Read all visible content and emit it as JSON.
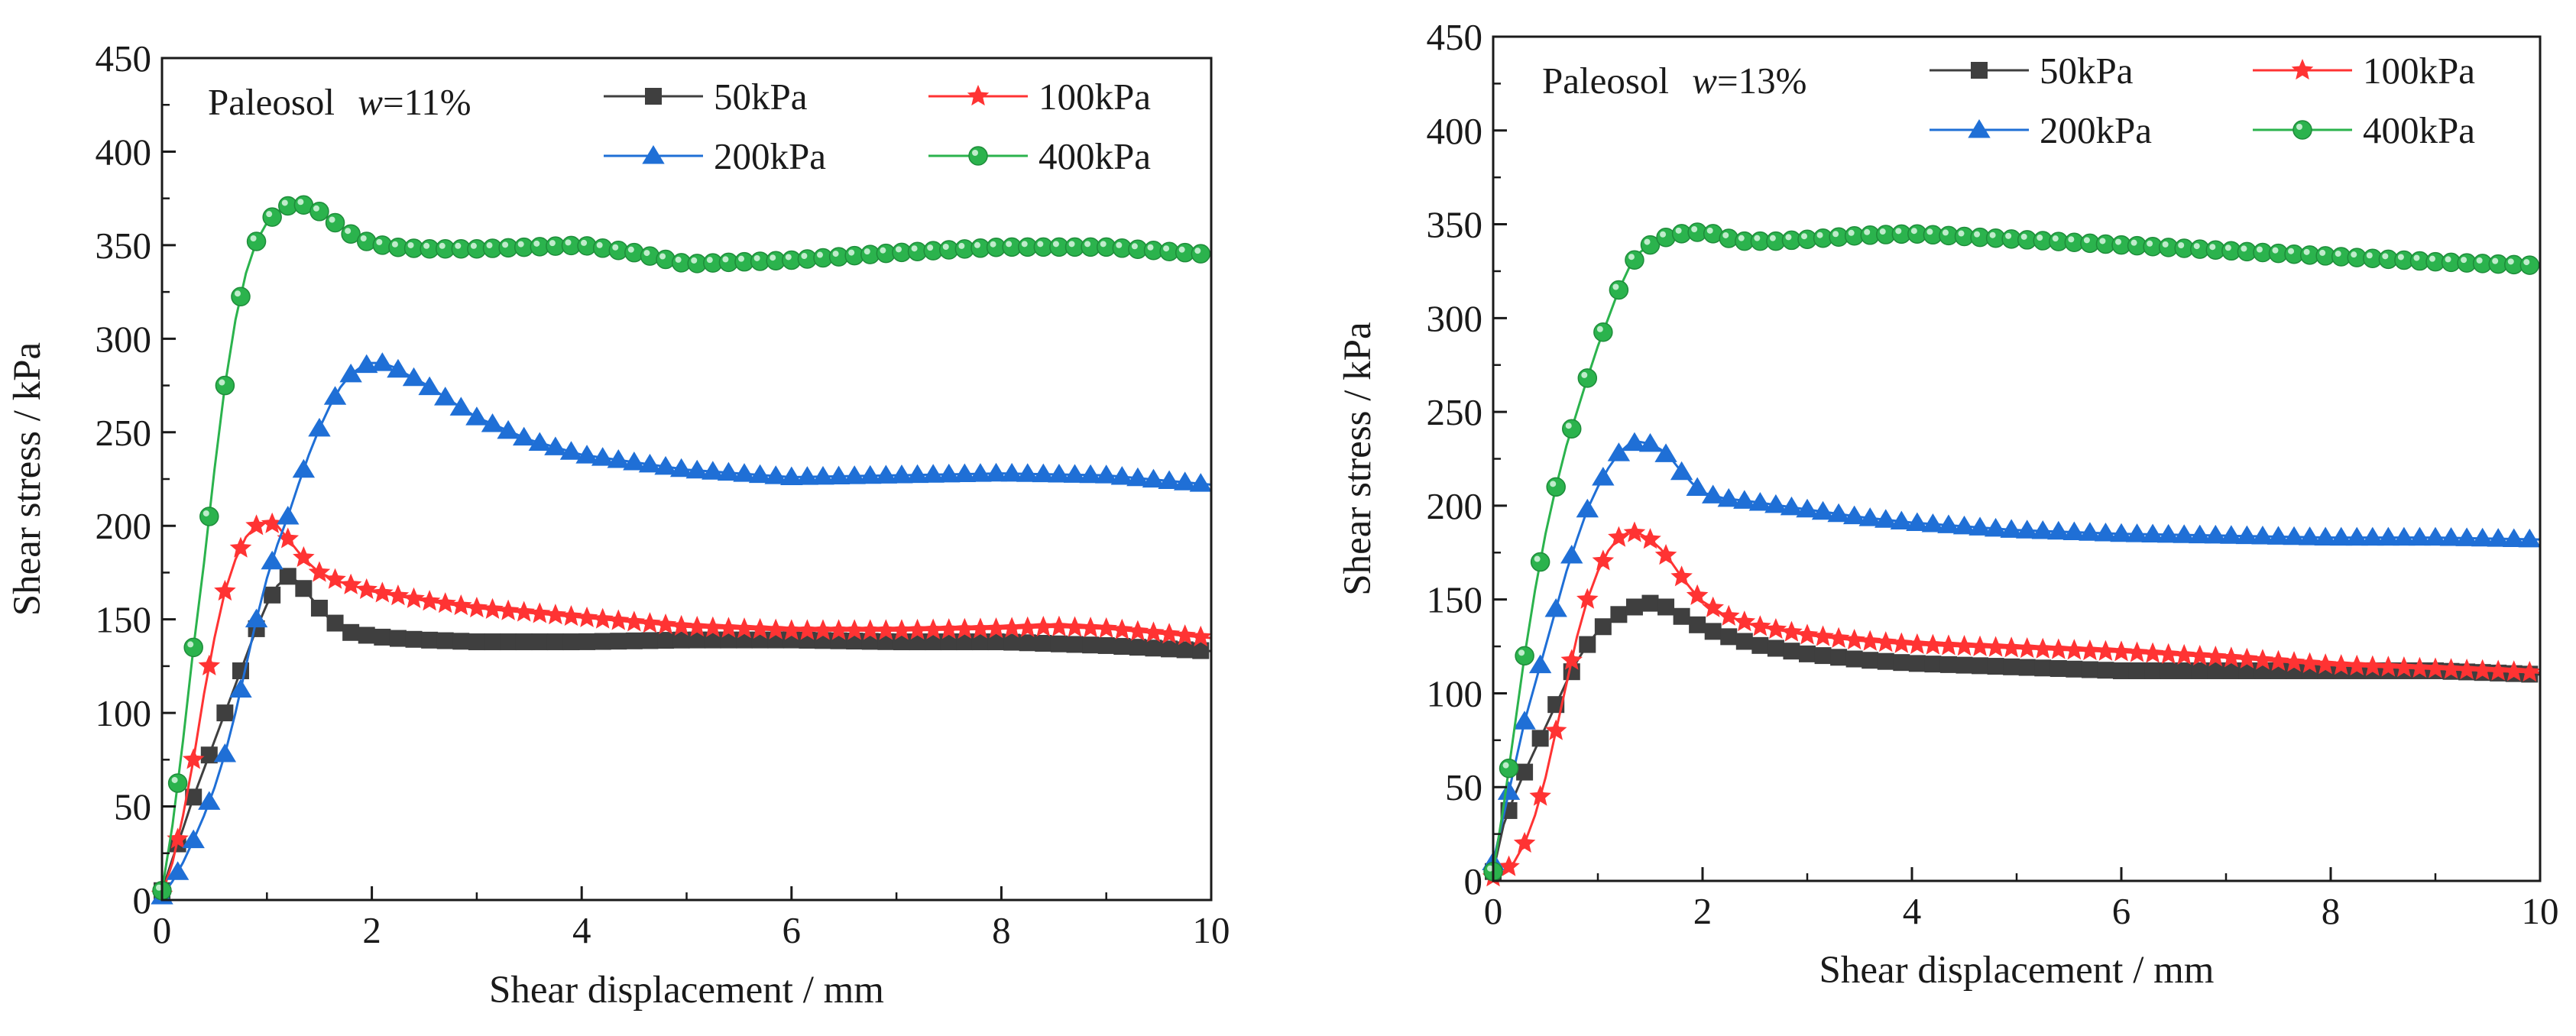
{
  "figure": {
    "colors": {
      "axis": "#1a1a1a",
      "s50": "#3f3f3f",
      "s100": "#ff3333",
      "s200": "#1f6fd6",
      "s400": "#2bb34d"
    }
  },
  "chart_data": [
    {
      "type": "line",
      "panel_title": {
        "name": "Paleosol",
        "w_symbol": "w",
        "w_value": "=11%"
      },
      "xlabel": "Shear displacement / mm",
      "ylabel": "Shear stress / kPa",
      "xlim": [
        0,
        10
      ],
      "ylim": [
        0,
        450
      ],
      "xticks": [
        "0",
        "2",
        "4",
        "6",
        "8",
        "10"
      ],
      "yticks": [
        "0",
        "50",
        "100",
        "150",
        "200",
        "250",
        "300",
        "350",
        "400",
        "450"
      ],
      "grid": false,
      "legend": "top-right",
      "series": [
        {
          "name": "50kPa",
          "marker": "square",
          "color": "#3f3f3f",
          "x": [
            0,
            0.1,
            0.2,
            0.3,
            0.4,
            0.5,
            0.6,
            0.7,
            0.8,
            0.9,
            1.0,
            1.1,
            1.2,
            1.3,
            1.4,
            1.5,
            1.6,
            1.7,
            1.8,
            2.0,
            2.2,
            2.5,
            3,
            4,
            5,
            6,
            7,
            8,
            9,
            10
          ],
          "y": [
            5,
            22,
            38,
            55,
            70,
            85,
            100,
            115,
            130,
            145,
            158,
            168,
            173,
            170,
            163,
            156,
            150,
            146,
            143,
            141,
            140,
            139,
            138,
            138,
            139,
            139,
            138,
            138,
            136,
            133
          ]
        },
        {
          "name": "100kPa",
          "marker": "star",
          "color": "#ff3333",
          "x": [
            0,
            0.1,
            0.2,
            0.3,
            0.4,
            0.5,
            0.6,
            0.7,
            0.8,
            0.9,
            1.0,
            1.1,
            1.2,
            1.3,
            1.4,
            1.5,
            1.7,
            2.0,
            2.5,
            3,
            4,
            5,
            6,
            7,
            8,
            8.5,
            9,
            10
          ],
          "y": [
            3,
            20,
            45,
            75,
            110,
            140,
            165,
            182,
            194,
            200,
            202,
            200,
            193,
            186,
            180,
            175,
            170,
            165,
            160,
            156,
            151,
            146,
            144,
            144,
            145,
            146,
            145,
            140
          ]
        },
        {
          "name": "200kPa",
          "marker": "triangle",
          "color": "#1f6fd6",
          "x": [
            0,
            0.1,
            0.2,
            0.3,
            0.4,
            0.5,
            0.6,
            0.7,
            0.8,
            0.9,
            1.0,
            1.1,
            1.2,
            1.3,
            1.4,
            1.5,
            1.6,
            1.7,
            1.8,
            1.9,
            2.0,
            2.1,
            2.2,
            2.3,
            2.5,
            2.8,
            3,
            3.5,
            4,
            5,
            6,
            7,
            8,
            9,
            10
          ],
          "y": [
            2,
            10,
            20,
            32,
            45,
            60,
            78,
            100,
            125,
            150,
            172,
            190,
            205,
            222,
            238,
            252,
            264,
            274,
            281,
            285,
            287,
            287,
            285,
            282,
            276,
            265,
            258,
            246,
            238,
            230,
            226,
            227,
            228,
            227,
            222
          ]
        },
        {
          "name": "400kPa",
          "marker": "circle",
          "color": "#2bb34d",
          "x": [
            0,
            0.1,
            0.2,
            0.3,
            0.4,
            0.5,
            0.6,
            0.7,
            0.8,
            0.9,
            1.0,
            1.1,
            1.2,
            1.3,
            1.4,
            1.5,
            1.6,
            1.7,
            1.8,
            1.9,
            2.0,
            2.2,
            2.5,
            3,
            3.5,
            4,
            4.5,
            5,
            5.5,
            6,
            7,
            8,
            9,
            10
          ],
          "y": [
            5,
            40,
            85,
            135,
            180,
            230,
            275,
            310,
            335,
            352,
            362,
            368,
            371,
            372,
            371,
            368,
            364,
            360,
            356,
            353,
            351,
            349,
            348,
            348,
            349,
            350,
            346,
            340,
            341,
            342,
            346,
            349,
            349,
            345
          ]
        }
      ]
    },
    {
      "type": "line",
      "panel_title": {
        "name": "Paleosol",
        "w_symbol": "w",
        "w_value": "=13%"
      },
      "xlabel": "Shear displacement / mm",
      "ylabel": "Shear stress / kPa",
      "xlim": [
        0,
        10
      ],
      "ylim": [
        0,
        450
      ],
      "xticks": [
        "0",
        "2",
        "4",
        "6",
        "8",
        "10"
      ],
      "yticks": [
        "0",
        "50",
        "100",
        "150",
        "200",
        "250",
        "300",
        "350",
        "400",
        "450"
      ],
      "grid": false,
      "legend": "top-right",
      "series": [
        {
          "name": "50kPa",
          "marker": "square",
          "color": "#3f3f3f",
          "x": [
            0,
            0.1,
            0.2,
            0.3,
            0.4,
            0.5,
            0.6,
            0.7,
            0.8,
            0.9,
            1.0,
            1.1,
            1.2,
            1.3,
            1.4,
            1.5,
            1.6,
            1.7,
            1.8,
            1.9,
            2.0,
            2.2,
            2.5,
            3,
            3.5,
            4,
            5,
            6,
            7,
            8,
            9,
            10
          ],
          "y": [
            5,
            30,
            45,
            58,
            70,
            82,
            94,
            106,
            117,
            126,
            133,
            138,
            142,
            145,
            147,
            148,
            147,
            145,
            141,
            138,
            135,
            131,
            126,
            121,
            118,
            116,
            114,
            112,
            112,
            112,
            112,
            110
          ]
        },
        {
          "name": "100kPa",
          "marker": "star",
          "color": "#ff3333",
          "x": [
            0,
            0.1,
            0.2,
            0.3,
            0.4,
            0.5,
            0.6,
            0.7,
            0.8,
            0.9,
            1.0,
            1.1,
            1.2,
            1.3,
            1.4,
            1.5,
            1.6,
            1.7,
            1.8,
            1.9,
            2.0,
            2.2,
            2.5,
            3,
            3.5,
            4,
            5,
            6,
            7,
            8,
            9,
            10
          ],
          "y": [
            2,
            5,
            10,
            20,
            35,
            55,
            80,
            105,
            130,
            150,
            165,
            176,
            183,
            186,
            185,
            182,
            177,
            170,
            162,
            155,
            149,
            142,
            136,
            131,
            128,
            126,
            124,
            122,
            119,
            115,
            113,
            111
          ]
        },
        {
          "name": "200kPa",
          "marker": "triangle",
          "color": "#1f6fd6",
          "x": [
            0,
            0.1,
            0.2,
            0.3,
            0.4,
            0.5,
            0.6,
            0.7,
            0.8,
            0.9,
            1.0,
            1.1,
            1.2,
            1.3,
            1.4,
            1.5,
            1.6,
            1.7,
            1.8,
            1.9,
            2.0,
            2.2,
            2.5,
            3,
            3.5,
            4,
            5,
            6,
            7,
            8,
            9,
            10
          ],
          "y": [
            10,
            35,
            60,
            85,
            105,
            125,
            145,
            165,
            182,
            198,
            210,
            220,
            228,
            233,
            234,
            233,
            230,
            225,
            218,
            212,
            207,
            204,
            202,
            198,
            194,
            191,
            187,
            185,
            184,
            183,
            183,
            182
          ]
        },
        {
          "name": "400kPa",
          "marker": "circle",
          "color": "#2bb34d",
          "x": [
            0,
            0.1,
            0.2,
            0.3,
            0.4,
            0.5,
            0.6,
            0.7,
            0.8,
            0.9,
            1.0,
            1.1,
            1.2,
            1.3,
            1.4,
            1.5,
            1.6,
            1.7,
            1.8,
            1.9,
            2.0,
            2.1,
            2.2,
            2.4,
            2.7,
            3,
            3.5,
            4,
            5,
            6,
            7,
            8,
            9,
            10
          ],
          "y": [
            5,
            40,
            80,
            120,
            155,
            185,
            210,
            232,
            250,
            268,
            285,
            300,
            315,
            327,
            335,
            339,
            342,
            344,
            345,
            345.5,
            346,
            345,
            343,
            341,
            341,
            342,
            344,
            345,
            342,
            339,
            336,
            333,
            330,
            328
          ]
        }
      ]
    }
  ]
}
